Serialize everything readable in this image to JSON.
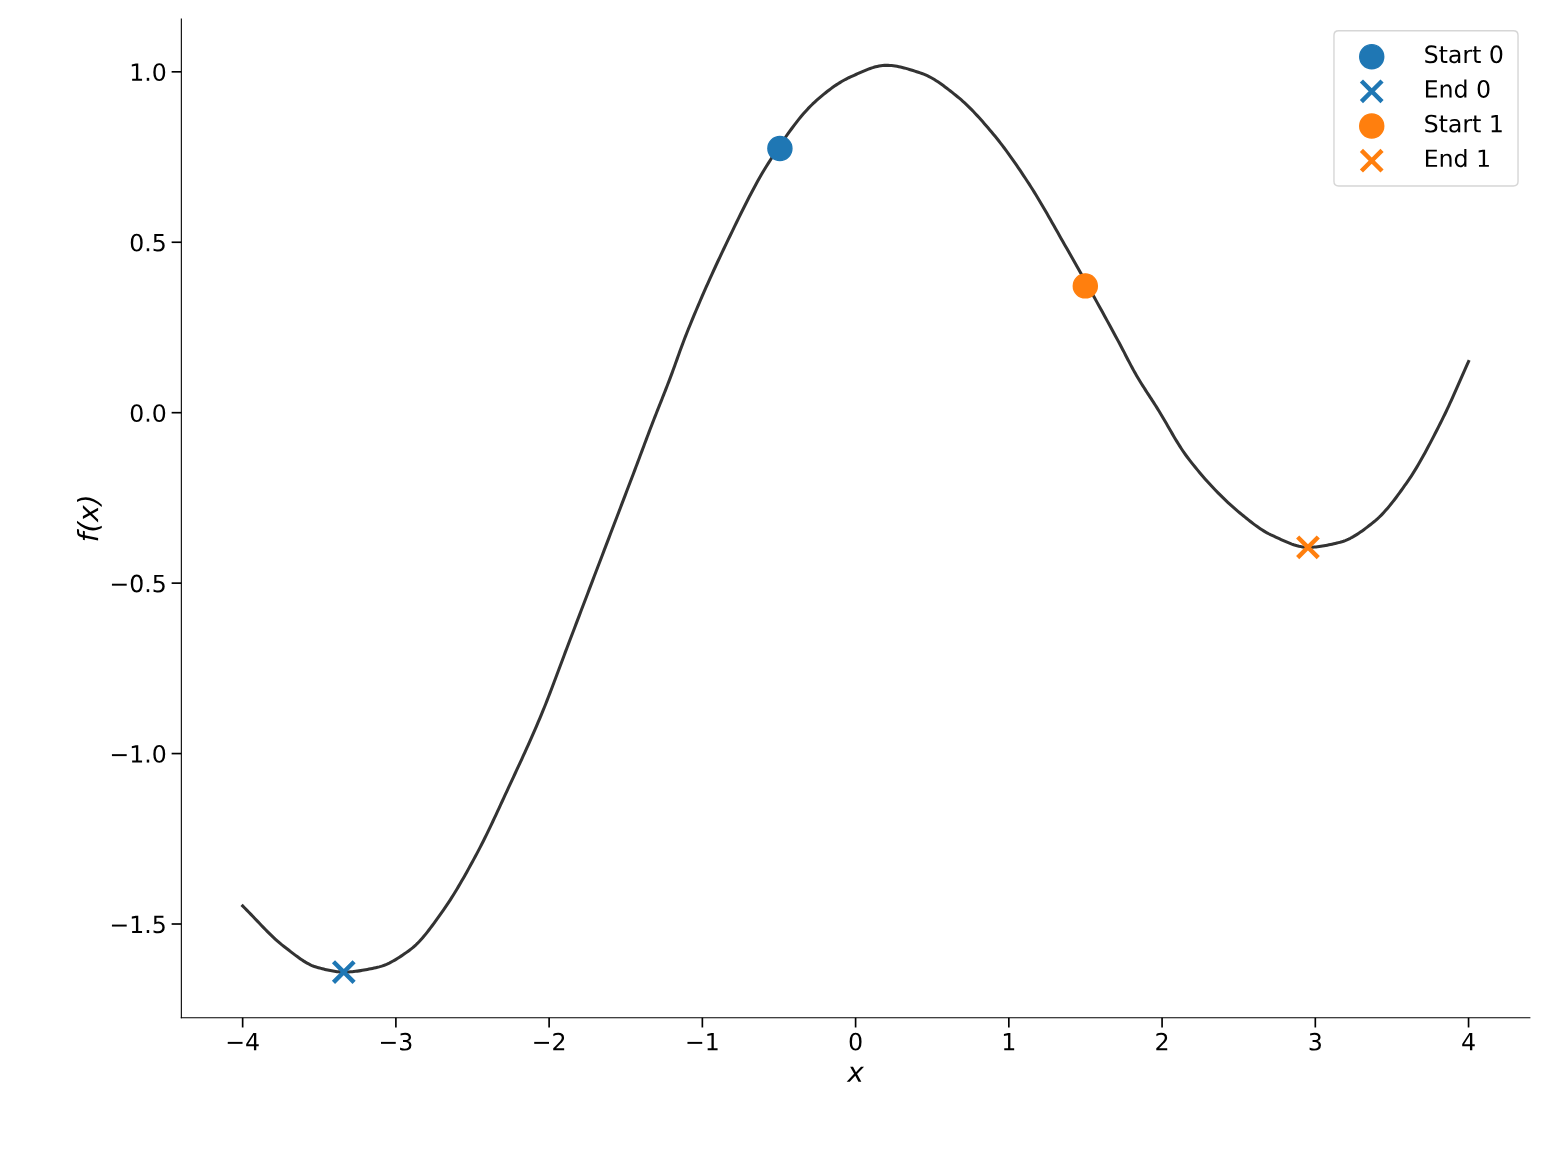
{
  "chart_data": {
    "type": "line",
    "xlabel": "x",
    "ylabel": "f(x)",
    "xlim": [
      -4.4,
      4.4
    ],
    "ylim": [
      -1.775,
      1.155
    ],
    "xticks": [
      {
        "value": -4,
        "label": "−4"
      },
      {
        "value": -3,
        "label": "−3"
      },
      {
        "value": -2,
        "label": "−2"
      },
      {
        "value": -1,
        "label": "−1"
      },
      0,
      1,
      2,
      3,
      4
    ],
    "yticks": [
      {
        "value": -1.5,
        "label": "−1.5"
      },
      {
        "value": -1.0,
        "label": "−1.0"
      },
      {
        "value": -0.5,
        "label": "−0.5"
      },
      {
        "value": 0.0,
        "label": "0.0"
      },
      {
        "value": 0.5,
        "label": "0.5"
      },
      {
        "value": 1.0,
        "label": "1.0"
      }
    ],
    "grid": false,
    "legend": "top right",
    "series": [
      {
        "color": "#333333",
        "marker": "none",
        "line_style": "solid",
        "x": [
          -4.0,
          -3.73,
          -3.515,
          -3.34,
          -3.12,
          -2.9,
          -2.69,
          -2.47,
          -2.265,
          -2.05,
          -1.866,
          -1.653,
          -1.44,
          -1.325,
          -1.214,
          -1.104,
          -0.847,
          -0.568,
          -0.265,
          -0.033,
          0.2,
          0.433,
          0.665,
          0.899,
          1.132,
          1.364,
          1.714,
          1.832,
          1.97,
          2.164,
          2.497,
          2.718,
          2.952,
          3.162,
          3.383,
          3.605,
          3.827,
          4.0
        ],
        "values": [
          -1.447,
          -1.566,
          -1.627,
          -1.641,
          -1.627,
          -1.573,
          -1.459,
          -1.292,
          -1.1,
          -0.885,
          -0.669,
          -0.418,
          -0.167,
          -0.03,
          0.097,
          0.231,
          0.493,
          0.733,
          0.912,
          0.985,
          1.019,
          0.995,
          0.927,
          0.817,
          0.671,
          0.493,
          0.21,
          0.11,
          0.012,
          -0.13,
          -0.29,
          -0.36,
          -0.395,
          -0.38,
          -0.32,
          -0.2,
          -0.021,
          0.15
        ]
      },
      {
        "type": "scatter",
        "name": "Start 0",
        "color": "#1f77b4",
        "marker": "circle",
        "x": [
          -0.494
        ],
        "values": [
          0.775
        ]
      },
      {
        "type": "scatter",
        "name": "End 0",
        "color": "#1f77b4",
        "marker": "cross",
        "x": [
          -3.34
        ],
        "values": [
          -1.641
        ]
      },
      {
        "type": "scatter",
        "name": "Start 1",
        "color": "#ff7f0e",
        "marker": "circle",
        "x": [
          1.499
        ],
        "values": [
          0.372
        ]
      },
      {
        "type": "scatter",
        "name": "End 1",
        "color": "#ff7f0e",
        "marker": "cross",
        "x": [
          2.952
        ],
        "values": [
          -0.395
        ]
      }
    ]
  }
}
